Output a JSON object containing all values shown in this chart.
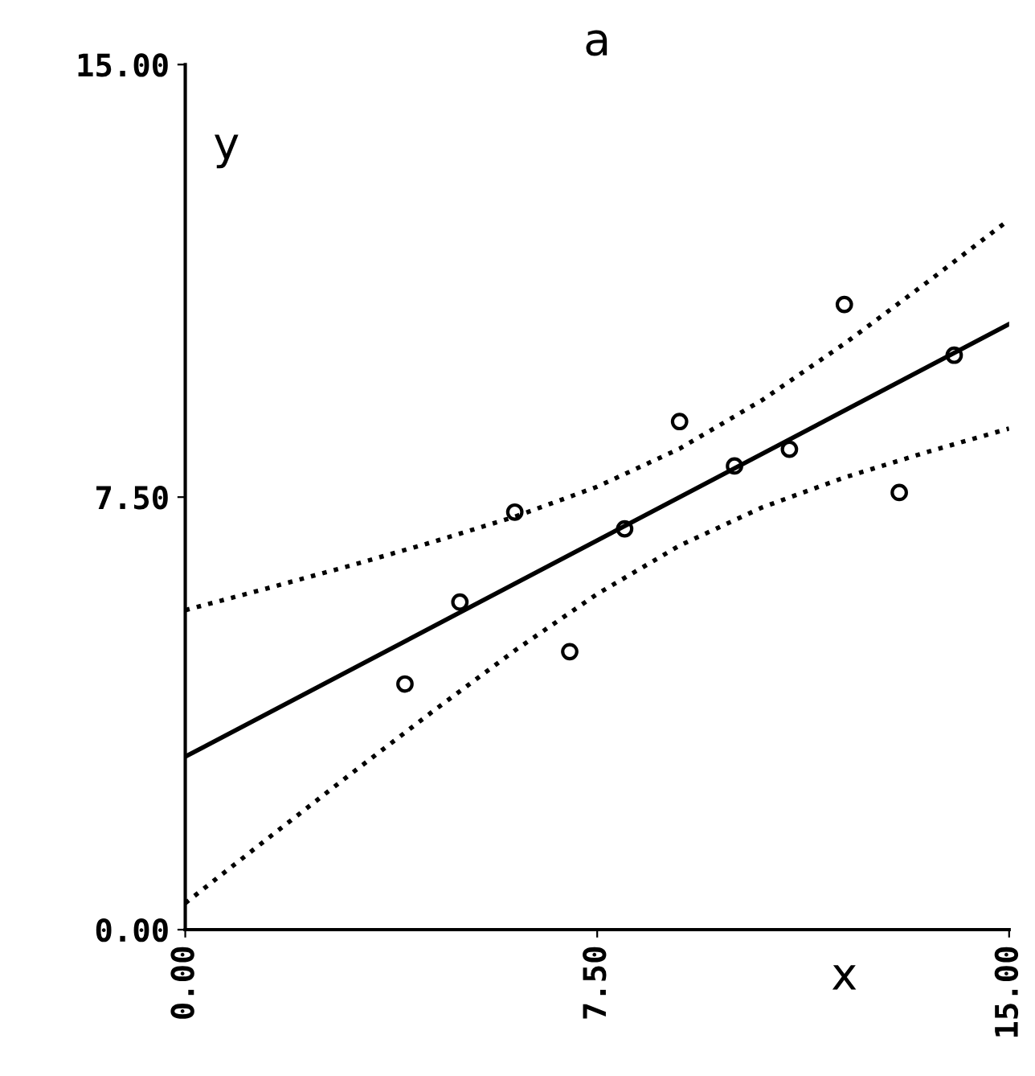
{
  "chart_data": {
    "type": "scatter",
    "title": "a",
    "xlabel": "x",
    "ylabel": "y",
    "xlim": [
      0,
      15
    ],
    "ylim": [
      0,
      15
    ],
    "xticks": [
      {
        "value": 0,
        "label": "0.00"
      },
      {
        "value": 7.5,
        "label": "7.50"
      },
      {
        "value": 15,
        "label": "15.00"
      }
    ],
    "yticks": [
      {
        "value": 0,
        "label": "0.00"
      },
      {
        "value": 7.5,
        "label": "7.50"
      },
      {
        "value": 15,
        "label": "15.00"
      }
    ],
    "grid": false,
    "legend": false,
    "series": [
      {
        "marker": "circle",
        "color": "#000000",
        "x": [
          10,
          8,
          13,
          9,
          11,
          14,
          6,
          4,
          12,
          7,
          5
        ],
        "values": [
          8.04,
          6.95,
          7.58,
          8.81,
          8.33,
          9.96,
          7.24,
          4.26,
          10.84,
          4.82,
          5.68
        ]
      },
      {
        "type": "line",
        "line_style": "solid",
        "color": "#000000",
        "x": [
          0,
          15
        ],
        "values": [
          3,
          10.5
        ]
      },
      {
        "type": "line",
        "line_style": "dotted",
        "color": "#000000",
        "x": [
          0,
          1.5,
          3,
          4.5,
          6,
          7.5,
          9,
          10.5,
          12,
          13.5,
          15
        ],
        "values": [
          5.54,
          5.92,
          6.31,
          6.72,
          7.16,
          7.68,
          8.34,
          9.18,
          10.16,
          11.22,
          12.31
        ]
      },
      {
        "type": "line",
        "line_style": "dotted",
        "color": "#000000",
        "x": [
          0,
          1.5,
          3,
          4.5,
          6,
          7.5,
          9,
          10.5,
          12,
          13.5,
          15
        ],
        "values": [
          0.46,
          1.58,
          2.69,
          3.78,
          4.84,
          5.82,
          6.66,
          7.32,
          7.84,
          8.28,
          8.69
        ]
      }
    ]
  }
}
